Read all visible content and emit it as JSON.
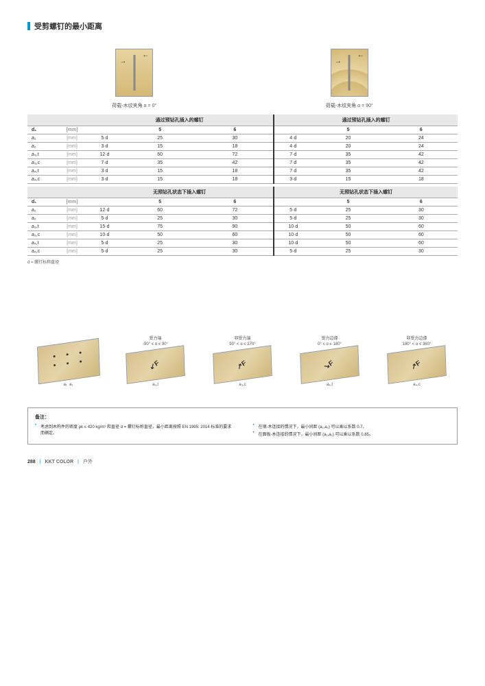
{
  "header": {
    "title": "受剪螺钉的最小距离"
  },
  "diagram_captions": {
    "left": "荷载-木纹夹角 α = 0°",
    "right": "荷载-木纹夹角 α = 90°"
  },
  "table1": {
    "header_left": "通过预钻孔插入的螺钉",
    "header_right": "通过预钻孔插入的螺钉",
    "d1": "d₁",
    "unit_mm_header": "[mm]",
    "col_5": "5",
    "col_6": "6",
    "rows": [
      {
        "label": "a₁",
        "unit": "[mm]",
        "l0": "5·d",
        "l5": "25",
        "l6": "30",
        "r0": "4·d",
        "r5": "20",
        "r6": "24"
      },
      {
        "label": "a₂",
        "unit": "[mm]",
        "l0": "3·d",
        "l5": "15",
        "l6": "18",
        "r0": "4·d",
        "r5": "20",
        "r6": "24"
      },
      {
        "label": "a₃,t",
        "unit": "[mm]",
        "l0": "12·d",
        "l5": "60",
        "l6": "72",
        "r0": "7·d",
        "r5": "35",
        "r6": "42"
      },
      {
        "label": "a₃,c",
        "unit": "[mm]",
        "l0": "7·d",
        "l5": "35",
        "l6": "42",
        "r0": "7·d",
        "r5": "35",
        "r6": "42"
      },
      {
        "label": "a₄,t",
        "unit": "[mm]",
        "l0": "3·d",
        "l5": "15",
        "l6": "18",
        "r0": "7·d",
        "r5": "35",
        "r6": "42"
      },
      {
        "label": "a₄,c",
        "unit": "[mm]",
        "l0": "3·d",
        "l5": "15",
        "l6": "18",
        "r0": "3·d",
        "r5": "15",
        "r6": "18"
      }
    ]
  },
  "table2": {
    "header_left": "无预钻孔状态下插入螺钉",
    "header_right": "无预钻孔状态下插入螺钉",
    "d1": "d₁",
    "unit_mm_header": "[mm]",
    "col_5": "5",
    "col_6": "6",
    "rows": [
      {
        "label": "a₁",
        "unit": "[mm]",
        "l0": "12·d",
        "l5": "60",
        "l6": "72",
        "r0": "5·d",
        "r5": "25",
        "r6": "30"
      },
      {
        "label": "a₂",
        "unit": "[mm]",
        "l0": "5·d",
        "l5": "25",
        "l6": "30",
        "r0": "5·d",
        "r5": "25",
        "r6": "30"
      },
      {
        "label": "a₃,t",
        "unit": "[mm]",
        "l0": "15·d",
        "l5": "75",
        "l6": "90",
        "r0": "10·d",
        "r5": "50",
        "r6": "60"
      },
      {
        "label": "a₃,c",
        "unit": "[mm]",
        "l0": "10·d",
        "l5": "50",
        "l6": "60",
        "r0": "10·d",
        "r5": "50",
        "r6": "60"
      },
      {
        "label": "a₄,t",
        "unit": "[mm]",
        "l0": "5·d",
        "l5": "25",
        "l6": "30",
        "r0": "10·d",
        "r5": "50",
        "r6": "60"
      },
      {
        "label": "a₄,c",
        "unit": "[mm]",
        "l0": "5·d",
        "l5": "25",
        "l6": "30",
        "r0": "5·d",
        "r5": "25",
        "r6": "30"
      }
    ]
  },
  "table_footnote": "d = 螺钉标称直径",
  "bottom": {
    "items": [
      {
        "title": "",
        "sub": "",
        "labels": [
          "a₂",
          "a₂",
          "a₁",
          "a₁"
        ]
      },
      {
        "title": "受力端",
        "sub": "-90° ≤ α ≤ 90°",
        "label": "a₃,t"
      },
      {
        "title": "非受力端",
        "sub": "90° < α ≤ 270°",
        "label": "a₃,c"
      },
      {
        "title": "受力边缘",
        "sub": "0° ≤ α ≤ 180°",
        "label": "a₄,t"
      },
      {
        "title": "非受力边缘",
        "sub": "180° < α ≤ 360°",
        "label": "a₄,c"
      }
    ]
  },
  "notes": {
    "title": "备注：",
    "left": [
      "考虑到木构件的密度 ρk ≤ 420 kg/m³ 和直径 d = 螺钉标称直径，最小距离按照 EN 1995: 2014 标准的要求而确定。"
    ],
    "right": [
      "在钢-木连接的情况下，最小间距 (a₁,a₂) 可以乘以系数 0.7。",
      "在面板-木连接的情况下，最小间距 (a₁,a₂) 可以乘以系数 0.85。"
    ]
  },
  "footer": {
    "page": "288",
    "brand": "KKT COLOR",
    "section": "户外"
  }
}
